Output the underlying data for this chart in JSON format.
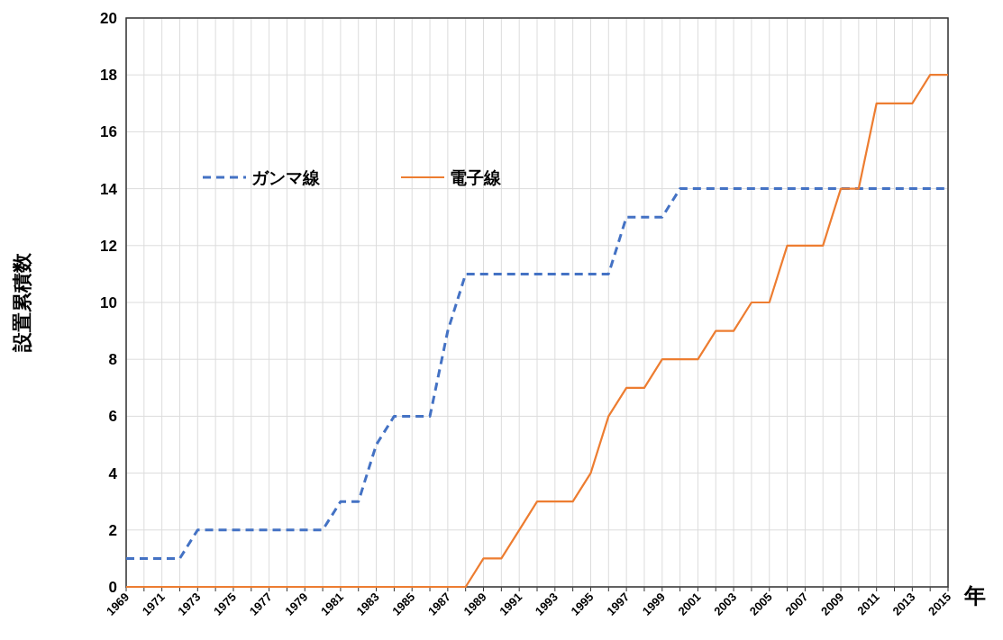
{
  "chart_data": {
    "type": "line",
    "xlabel": "年",
    "ylabel": "設置累積数",
    "x": [
      1969,
      1970,
      1971,
      1972,
      1973,
      1974,
      1975,
      1976,
      1977,
      1978,
      1979,
      1980,
      1981,
      1982,
      1983,
      1984,
      1985,
      1986,
      1987,
      1988,
      1989,
      1990,
      1991,
      1992,
      1993,
      1994,
      1995,
      1996,
      1997,
      1998,
      1999,
      2000,
      2001,
      2002,
      2003,
      2004,
      2005,
      2006,
      2007,
      2008,
      2009,
      2010,
      2011,
      2012,
      2013,
      2014,
      2015
    ],
    "series": [
      {
        "name": "ガンマ線",
        "color": "#4472c4",
        "line_style": "dashed",
        "values": [
          1,
          1,
          1,
          1,
          2,
          2,
          2,
          2,
          2,
          2,
          2,
          2,
          3,
          3,
          5,
          6,
          6,
          6,
          9,
          11,
          11,
          11,
          11,
          11,
          11,
          11,
          11,
          11,
          13,
          13,
          13,
          14,
          14,
          14,
          14,
          14,
          14,
          14,
          14,
          14,
          14,
          14,
          14,
          14,
          14,
          14,
          14
        ]
      },
      {
        "name": "電子線",
        "color": "#ed7d31",
        "line_style": "solid",
        "values": [
          0,
          0,
          0,
          0,
          0,
          0,
          0,
          0,
          0,
          0,
          0,
          0,
          0,
          0,
          0,
          0,
          0,
          0,
          0,
          0,
          1,
          1,
          2,
          3,
          3,
          3,
          4,
          6,
          7,
          7,
          8,
          8,
          8,
          9,
          9,
          10,
          10,
          12,
          12,
          12,
          14,
          14,
          17,
          17,
          17,
          18,
          18
        ]
      }
    ],
    "xlim": [
      1969,
      2015
    ],
    "xticks": [
      1969,
      {
        "value": 1970,
        "label": null
      },
      1971,
      {
        "value": 1972,
        "label": null
      },
      1973,
      {
        "value": 1974,
        "label": null
      },
      1975,
      {
        "value": 1976,
        "label": null
      },
      1977,
      {
        "value": 1978,
        "label": null
      },
      1979,
      {
        "value": 1980,
        "label": null
      },
      1981,
      {
        "value": 1982,
        "label": null
      },
      1983,
      {
        "value": 1984,
        "label": null
      },
      1985,
      {
        "value": 1986,
        "label": null
      },
      1987,
      {
        "value": 1988,
        "label": null
      },
      1989,
      {
        "value": 1990,
        "label": null
      },
      1991,
      {
        "value": 1992,
        "label": null
      },
      1993,
      {
        "value": 1994,
        "label": null
      },
      1995,
      {
        "value": 1996,
        "label": null
      },
      1997,
      {
        "value": 1998,
        "label": null
      },
      1999,
      {
        "value": 2000,
        "label": null
      },
      2001,
      {
        "value": 2002,
        "label": null
      },
      2003,
      {
        "value": 2004,
        "label": null
      },
      2005,
      {
        "value": 2006,
        "label": null
      },
      2007,
      {
        "value": 2008,
        "label": null
      },
      2009,
      {
        "value": 2010,
        "label": null
      },
      2011,
      {
        "value": 2012,
        "label": null
      },
      2013,
      {
        "value": 2014,
        "label": null
      },
      2015
    ],
    "ylim": [
      0,
      20
    ],
    "yticks": [
      0,
      2,
      4,
      6,
      8,
      10,
      12,
      14,
      16,
      18,
      20
    ],
    "grid": true,
    "legend": "top left"
  }
}
